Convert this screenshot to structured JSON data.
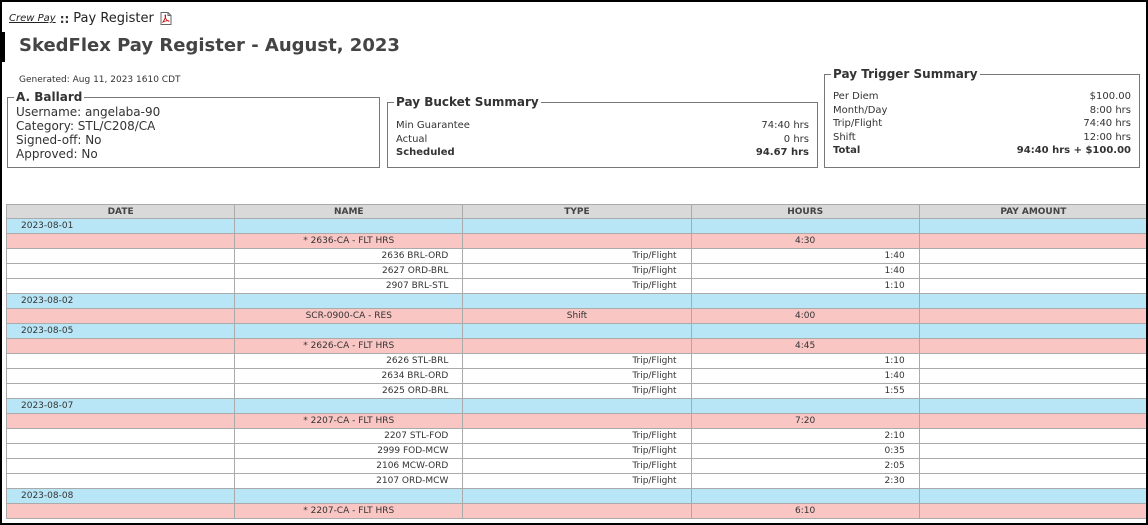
{
  "breadcrumb": {
    "link": "Crew Pay",
    "separator": "::",
    "current": "Pay Register"
  },
  "title": "SkedFlex Pay Register - August, 2023",
  "generated": "Generated: Aug 11, 2023 1610 CDT",
  "user": {
    "name": "A. Ballard",
    "username": "Username: angelaba-90",
    "category": "Category: STL/C208/CA",
    "signed_off": "Signed-off: No",
    "approved": "Approved: No"
  },
  "bucket": {
    "title": "Pay Bucket Summary",
    "rows": [
      {
        "label": "Min Guarantee",
        "value": "74:40 hrs"
      },
      {
        "label": "Actual",
        "value": "0 hrs"
      },
      {
        "label": "Scheduled",
        "value": "94.67 hrs"
      }
    ]
  },
  "trigger": {
    "title": "Pay Trigger Summary",
    "rows": [
      {
        "label": "Per Diem",
        "value": "$100.00"
      },
      {
        "label": "Month/Day",
        "value": "8:00 hrs"
      },
      {
        "label": "Trip/Flight",
        "value": "74:40 hrs"
      },
      {
        "label": "Shift",
        "value": "12:00 hrs"
      },
      {
        "label": "Total",
        "value": "94:40 hrs + $100.00"
      }
    ]
  },
  "table": {
    "headers": [
      "DATE",
      "NAME",
      "TYPE",
      "HOURS",
      "PAY AMOUNT"
    ],
    "rows": [
      {
        "kind": "date",
        "date": "2023-08-01",
        "name": "",
        "type": "",
        "hours": "",
        "pay": ""
      },
      {
        "kind": "group",
        "date": "",
        "name": "* 2636-CA - FLT HRS",
        "type": "",
        "hours": "4:30",
        "pay": ""
      },
      {
        "kind": "item",
        "date": "",
        "name": "2636 BRL-ORD",
        "type": "Trip/Flight",
        "hours": "1:40",
        "pay": ""
      },
      {
        "kind": "item",
        "date": "",
        "name": "2627 ORD-BRL",
        "type": "Trip/Flight",
        "hours": "1:40",
        "pay": ""
      },
      {
        "kind": "item",
        "date": "",
        "name": "2907 BRL-STL",
        "type": "Trip/Flight",
        "hours": "1:10",
        "pay": ""
      },
      {
        "kind": "date",
        "date": "2023-08-02",
        "name": "",
        "type": "",
        "hours": "",
        "pay": ""
      },
      {
        "kind": "group",
        "date": "",
        "name": "SCR-0900-CA - RES",
        "type": "Shift",
        "hours": "4:00",
        "pay": ""
      },
      {
        "kind": "date",
        "date": "2023-08-05",
        "name": "",
        "type": "",
        "hours": "",
        "pay": ""
      },
      {
        "kind": "group",
        "date": "",
        "name": "* 2626-CA - FLT HRS",
        "type": "",
        "hours": "4:45",
        "pay": ""
      },
      {
        "kind": "item",
        "date": "",
        "name": "2626 STL-BRL",
        "type": "Trip/Flight",
        "hours": "1:10",
        "pay": ""
      },
      {
        "kind": "item",
        "date": "",
        "name": "2634 BRL-ORD",
        "type": "Trip/Flight",
        "hours": "1:40",
        "pay": ""
      },
      {
        "kind": "item",
        "date": "",
        "name": "2625 ORD-BRL",
        "type": "Trip/Flight",
        "hours": "1:55",
        "pay": ""
      },
      {
        "kind": "date",
        "date": "2023-08-07",
        "name": "",
        "type": "",
        "hours": "",
        "pay": ""
      },
      {
        "kind": "group",
        "date": "",
        "name": "* 2207-CA - FLT HRS",
        "type": "",
        "hours": "7:20",
        "pay": ""
      },
      {
        "kind": "item",
        "date": "",
        "name": "2207 STL-FOD",
        "type": "Trip/Flight",
        "hours": "2:10",
        "pay": ""
      },
      {
        "kind": "item",
        "date": "",
        "name": "2999 FOD-MCW",
        "type": "Trip/Flight",
        "hours": "0:35",
        "pay": ""
      },
      {
        "kind": "item",
        "date": "",
        "name": "2106 MCW-ORD",
        "type": "Trip/Flight",
        "hours": "2:05",
        "pay": ""
      },
      {
        "kind": "item",
        "date": "",
        "name": "2107 ORD-MCW",
        "type": "Trip/Flight",
        "hours": "2:30",
        "pay": ""
      },
      {
        "kind": "date",
        "date": "2023-08-08",
        "name": "",
        "type": "",
        "hours": "",
        "pay": ""
      },
      {
        "kind": "group",
        "date": "",
        "name": "* 2207-CA - FLT HRS",
        "type": "",
        "hours": "6:10",
        "pay": ""
      }
    ]
  }
}
